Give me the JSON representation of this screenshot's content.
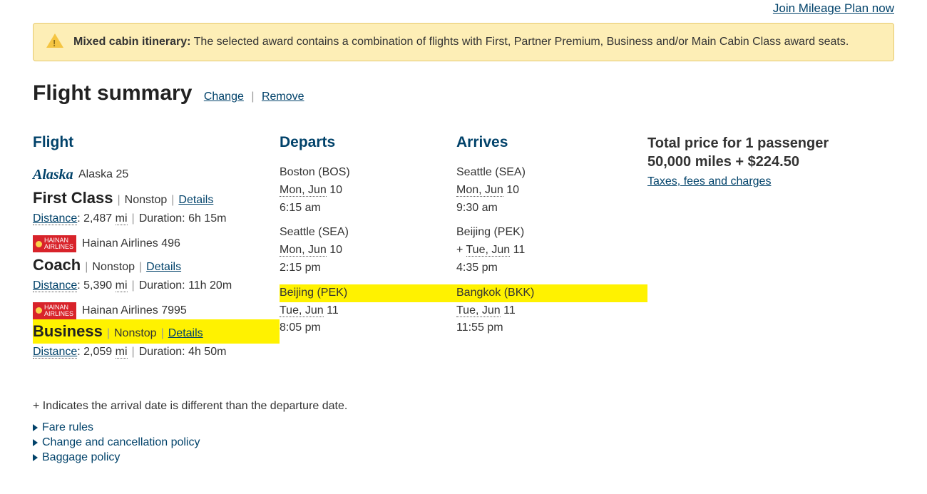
{
  "colors": {
    "link": "#01426a",
    "alert_bg": "#fdeeb6",
    "alert_border": "#e6c96f",
    "highlight": "#fff200",
    "hainan_red": "#d8232a"
  },
  "topLink": "Join Mileage Plan now",
  "alert": {
    "label": "Mixed cabin itinerary:",
    "text": "The selected award contains a combination of flights with First, Partner Premium, Business and/or Main Cabin Class award seats."
  },
  "summary": {
    "title": "Flight summary",
    "change": "Change",
    "remove": "Remove"
  },
  "headers": {
    "flight": "Flight",
    "departs": "Departs",
    "arrives": "Arrives"
  },
  "labels": {
    "nonstop": "Nonstop",
    "details": "Details",
    "distance": "Distance",
    "duration": "Duration",
    "mi": "mi"
  },
  "segments": [
    {
      "airlineLogo": "alaska",
      "airlineText": "Alaska 25",
      "cabin": "First Class",
      "distance": "2,487",
      "duration": "6h 15m",
      "dep": {
        "city": "Boston (BOS)",
        "date": "Mon, Jun 10",
        "dateAbbr": "Mon, Jun",
        "day": "10",
        "time": "6:15 am"
      },
      "arr": {
        "city": "Seattle (SEA)",
        "date": "Mon, Jun 10",
        "dateAbbr": "Mon, Jun",
        "day": "10",
        "time": "9:30 am",
        "plus": false
      },
      "highlight": false
    },
    {
      "airlineLogo": "hainan",
      "airlineText": "Hainan Airlines 496",
      "cabin": "Coach",
      "distance": "5,390",
      "duration": "11h 20m",
      "dep": {
        "city": "Seattle (SEA)",
        "date": "Mon, Jun 10",
        "dateAbbr": "Mon, Jun",
        "day": "10",
        "time": "2:15 pm"
      },
      "arr": {
        "city": "Beijing (PEK)",
        "date": "Tue, Jun 11",
        "dateAbbr": "Tue, Jun",
        "day": "11",
        "time": "4:35 pm",
        "plus": true
      },
      "highlight": false
    },
    {
      "airlineLogo": "hainan",
      "airlineText": "Hainan Airlines 7995",
      "cabin": "Business",
      "distance": "2,059",
      "duration": "4h 50m",
      "dep": {
        "city": "Beijing (PEK)",
        "date": "Tue, Jun 11",
        "dateAbbr": "Tue, Jun",
        "day": "11",
        "time": "8:05 pm"
      },
      "arr": {
        "city": "Bangkok (BKK)",
        "date": "Tue, Jun 11",
        "dateAbbr": "Tue, Jun",
        "day": "11",
        "time": "11:55 pm",
        "plus": false
      },
      "highlight": true
    }
  ],
  "price": {
    "line1": "Total price for 1 passenger",
    "line2": "50,000 miles + $224.50",
    "taxesLink": "Taxes, fees and charges"
  },
  "footnote": "+ Indicates the arrival date is different than the departure date.",
  "expandLinks": [
    "Fare rules",
    "Change and cancellation policy",
    "Baggage policy"
  ]
}
